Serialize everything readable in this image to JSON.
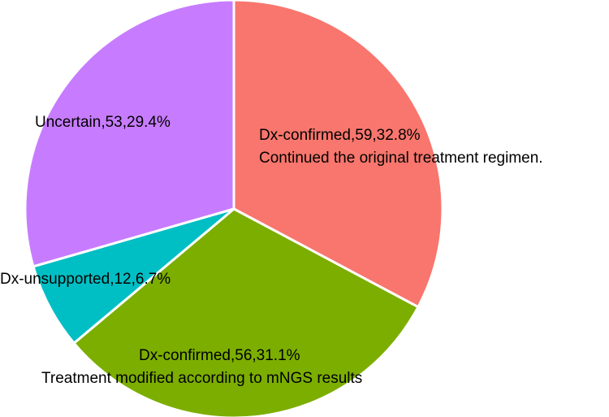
{
  "chart_data": {
    "type": "pie",
    "title": "",
    "slices": [
      {
        "label": "Dx-confirmed,59,32.8%",
        "sublabel": "Continued the original treatment regimen.",
        "value": 59,
        "percent": 32.8,
        "color": "#F8766D"
      },
      {
        "label": "Dx-confirmed,56,31.1%",
        "sublabel": "Treatment modified according to mNGS results",
        "value": 56,
        "percent": 31.1,
        "color": "#7CAE00"
      },
      {
        "label": "Dx-unsupported,12,6.7%",
        "sublabel": "",
        "value": 12,
        "percent": 6.7,
        "color": "#00BFC4"
      },
      {
        "label": "Uncertain,53,29.4%",
        "sublabel": "",
        "value": 53,
        "percent": 29.4,
        "color": "#C77CFF"
      }
    ]
  }
}
